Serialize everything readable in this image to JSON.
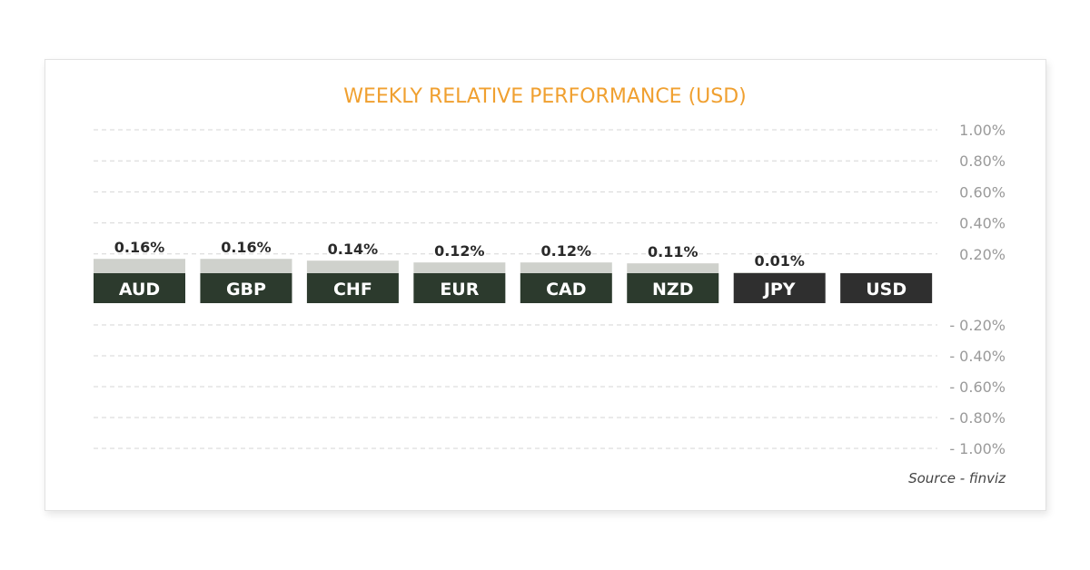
{
  "chart_data": {
    "type": "bar",
    "title": "WEEKLY RELATIVE PERFORMANCE (USD)",
    "source": "Source - finviz",
    "categories": [
      "AUD",
      "GBP",
      "CHF",
      "EUR",
      "CAD",
      "NZD",
      "JPY",
      "USD"
    ],
    "values": [
      0.16,
      0.16,
      0.14,
      0.12,
      0.12,
      0.11,
      0.01,
      null
    ],
    "value_labels": [
      "0.16%",
      "0.16%",
      "0.14%",
      "0.12%",
      "0.12%",
      "0.11%",
      "0.01%",
      ""
    ],
    "positive_ticks": [
      "1.00%",
      "0.80%",
      "0.60%",
      "0.40%",
      "0.20%"
    ],
    "negative_ticks": [
      "- 0.20%",
      "- 0.40%",
      "- 0.60%",
      "- 0.80%",
      "- 1.00%"
    ],
    "ylim": [
      -1.0,
      1.0
    ],
    "grid": true,
    "colors": {
      "title": "#f0a030",
      "grid": "#d6d6d6",
      "tick_text": "#9a9a9a",
      "value_bar": "#cfd1cc",
      "label_box_green": "#2c3a2d",
      "label_box_dark": "#2f2f2f",
      "label_text": "#ffffff",
      "value_text": "#2a2a2a",
      "source_text": "#444444"
    }
  }
}
